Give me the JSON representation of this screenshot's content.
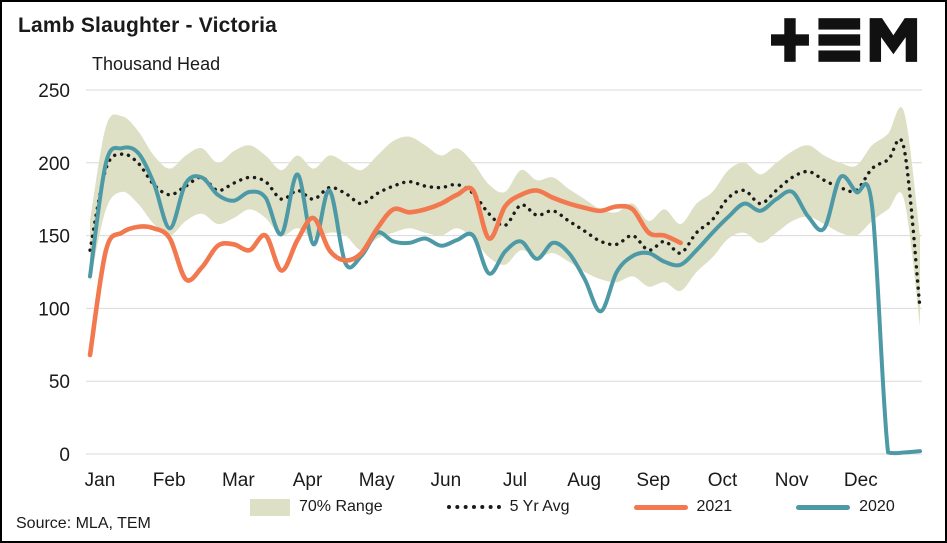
{
  "header": {
    "title": "Lamb Slaughter - Victoria",
    "subtitle": "Thousand Head",
    "logo": "TEM"
  },
  "source": {
    "text": "Source: MLA, TEM"
  },
  "chart_data": {
    "type": "line",
    "title": "Lamb Slaughter - Victoria",
    "ylabel": "Thousand Head",
    "ylim": [
      0,
      250
    ],
    "yticks": [
      0,
      50,
      100,
      150,
      200,
      250
    ],
    "x_tick_labels": [
      "Jan",
      "Feb",
      "Mar",
      "Apr",
      "May",
      "Jun",
      "Jul",
      "Aug",
      "Sep",
      "Oct",
      "Nov",
      "Dec"
    ],
    "x_unit": "week",
    "weeks": 53,
    "grid": true,
    "legend_position": "bottom",
    "colors": {
      "band": "#dde0c5",
      "avg": "#1b1b1b",
      "y2021": "#f2794f",
      "y2020": "#4d9aa6",
      "grid": "#d9d9d9",
      "text": "#1a1a1a"
    },
    "series": {
      "band_upper": [
        160,
        225,
        232,
        222,
        205,
        196,
        205,
        210,
        200,
        208,
        212,
        205,
        195,
        205,
        196,
        205,
        200,
        195,
        205,
        215,
        218,
        212,
        205,
        210,
        200,
        185,
        180,
        195,
        188,
        190,
        182,
        175,
        168,
        166,
        172,
        160,
        168,
        158,
        172,
        180,
        195,
        200,
        192,
        200,
        208,
        212,
        205,
        200,
        198,
        212,
        220,
        235,
        150
      ],
      "band_lower": [
        118,
        168,
        180,
        172,
        158,
        150,
        160,
        165,
        158,
        162,
        168,
        162,
        150,
        155,
        148,
        152,
        150,
        140,
        148,
        152,
        155,
        152,
        150,
        155,
        148,
        135,
        130,
        140,
        135,
        138,
        132,
        125,
        120,
        118,
        122,
        115,
        118,
        112,
        125,
        135,
        148,
        152,
        145,
        152,
        160,
        163,
        158,
        152,
        150,
        160,
        168,
        175,
        88
      ],
      "five_yr_avg": [
        140,
        196,
        206,
        200,
        185,
        178,
        184,
        190,
        181,
        186,
        190,
        187,
        175,
        181,
        175,
        183,
        179,
        172,
        179,
        184,
        187,
        184,
        183,
        185,
        179,
        165,
        157,
        171,
        164,
        167,
        160,
        153,
        146,
        144,
        150,
        140,
        146,
        138,
        152,
        161,
        176,
        181,
        172,
        181,
        190,
        194,
        188,
        183,
        181,
        196,
        202,
        210,
        100
      ],
      "y2021": [
        68,
        140,
        152,
        156,
        155,
        148,
        120,
        128,
        143,
        144,
        140,
        150,
        126,
        147,
        162,
        140,
        133,
        138,
        155,
        168,
        166,
        168,
        172,
        178,
        181,
        148,
        170,
        178,
        181,
        176,
        172,
        169,
        167,
        170,
        168,
        152,
        150,
        145
      ],
      "y2020": [
        122,
        200,
        210,
        207,
        186,
        155,
        186,
        190,
        178,
        174,
        180,
        176,
        151,
        192,
        144,
        181,
        131,
        136,
        152,
        146,
        145,
        148,
        143,
        147,
        150,
        124,
        139,
        146,
        134,
        145,
        138,
        120,
        98,
        125,
        136,
        138,
        132,
        130,
        140,
        152,
        163,
        172,
        167,
        175,
        180,
        163,
        155,
        190,
        180,
        170,
        1,
        1,
        2
      ]
    },
    "legend": [
      {
        "label": "70% Range",
        "type": "band"
      },
      {
        "label": "5 Yr Avg",
        "type": "dotted"
      },
      {
        "label": "2021",
        "type": "line"
      },
      {
        "label": "2020",
        "type": "line"
      }
    ]
  }
}
